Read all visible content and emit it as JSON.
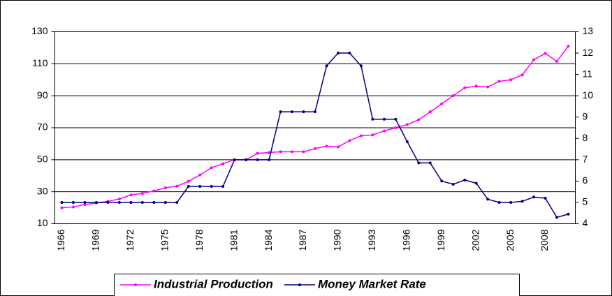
{
  "chart_data": {
    "type": "line",
    "categories": [
      "1966",
      null,
      null,
      "1969",
      null,
      null,
      "1972",
      null,
      null,
      "1975",
      null,
      null,
      "1978",
      null,
      null,
      "1981",
      null,
      null,
      "1984",
      null,
      null,
      "1987",
      null,
      null,
      "1990",
      null,
      null,
      "1993",
      null,
      null,
      "1996",
      null,
      null,
      "1999",
      null,
      null,
      "2002",
      null,
      null,
      "2005",
      null,
      null,
      "2008",
      null,
      null
    ],
    "series": [
      {
        "name": "Industrial Production",
        "color": "#ff00ff",
        "values": [
          20,
          20.5,
          22,
          23,
          24,
          25.5,
          28,
          29,
          30.5,
          32.5,
          33.5,
          36.5,
          40.5,
          45,
          47.5,
          50,
          50,
          54,
          54.5,
          55,
          55,
          55,
          57,
          58.5,
          58,
          62,
          65,
          65.5,
          68,
          70,
          72,
          75,
          80,
          85,
          90,
          95,
          96,
          95.5,
          99,
          100,
          103,
          112.5,
          116.5,
          111.5,
          121
        ]
      },
      {
        "name": "Money Market Rate",
        "color": "#000080",
        "axis": "y2",
        "values": [
          5,
          5,
          5,
          5,
          5,
          5,
          5,
          5,
          5,
          5,
          5,
          5.75,
          5.75,
          5.75,
          5.75,
          7,
          7,
          7,
          7,
          9.25,
          9.25,
          9.25,
          9.25,
          11.4,
          12,
          12,
          11.4,
          8.9,
          8.9,
          8.9,
          7.85,
          6.85,
          6.85,
          6,
          5.85,
          6.05,
          5.9,
          5.15,
          5,
          5,
          5.05,
          5.25,
          5.2,
          4.3,
          4.45
        ]
      }
    ],
    "ylim": [
      10,
      130
    ],
    "yticks": [
      10,
      30,
      50,
      70,
      90,
      110,
      130
    ],
    "y2lim": [
      4,
      13
    ],
    "y2ticks": [
      4,
      5,
      6,
      7,
      8,
      9,
      10,
      11,
      12,
      13
    ],
    "grid": true,
    "legend": "bottom"
  }
}
